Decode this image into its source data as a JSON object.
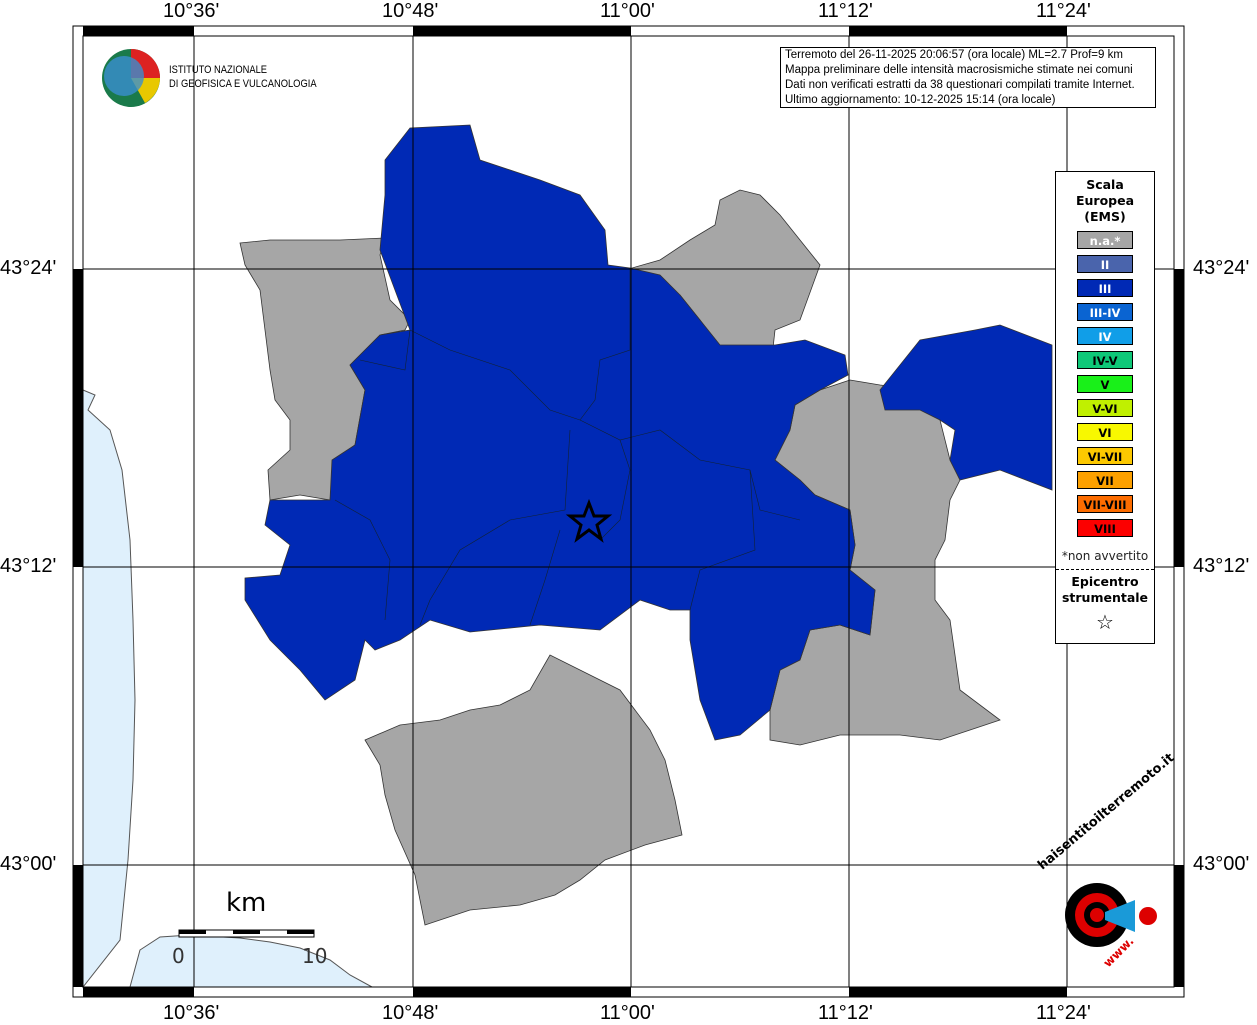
{
  "axes": {
    "lon_labels": [
      "10°36'",
      "10°48'",
      "11°00'",
      "11°12'",
      "11°24'"
    ],
    "lat_labels": [
      "43°24'",
      "43°12'",
      "43°00'"
    ]
  },
  "logo": {
    "line1": "ISTITUTO NAZIONALE",
    "line2": "DI GEOFISICA E VULCANOLOGIA"
  },
  "info": {
    "lines": [
      "Terremoto del 26-11-2025 20:06:57 (ora locale) ML=2.7 Prof=9 km",
      "Mappa preliminare delle intensità macrosismiche stimate nei comuni",
      "Dati non verificati estratti da 38 questionari compilati tramite Internet.",
      "Ultimo aggiornamento: 10-12-2025 15:14 (ora locale)"
    ]
  },
  "legend": {
    "title_lines": [
      "Scala",
      "Europea",
      "(EMS)"
    ],
    "items": [
      {
        "label": "n.a.*",
        "color": "#a6a6a6",
        "text": "#fff"
      },
      {
        "label": "II",
        "color": "#4a64ac",
        "text": "#fff"
      },
      {
        "label": "III",
        "color": "#0029b5",
        "text": "#fff"
      },
      {
        "label": "III-IV",
        "color": "#0a64d2",
        "text": "#fff"
      },
      {
        "label": "IV",
        "color": "#109ee8",
        "text": "#fff"
      },
      {
        "label": "IV-V",
        "color": "#0ec878",
        "text": "#000"
      },
      {
        "label": "V",
        "color": "#19f019",
        "text": "#000"
      },
      {
        "label": "V-VI",
        "color": "#c0f000",
        "text": "#000"
      },
      {
        "label": "VI",
        "color": "#f8f800",
        "text": "#000"
      },
      {
        "label": "VI-VII",
        "color": "#fcc800",
        "text": "#000"
      },
      {
        "label": "VII",
        "color": "#fca000",
        "text": "#000"
      },
      {
        "label": "VII-VIII",
        "color": "#fc6c00",
        "text": "#000"
      },
      {
        "label": "VIII",
        "color": "#fc0000",
        "text": "#000"
      }
    ],
    "note": "*non avvertito",
    "epicenter_lines": [
      "Epicentro",
      "strumentale"
    ],
    "epicenter_icon": "star-icon"
  },
  "scale": {
    "unit": "km",
    "min": "0",
    "max": "10"
  },
  "hst_logo": {
    "text": "haisentitoilterremoto.it",
    "www": "www."
  },
  "colors": {
    "water": "#dff0fc",
    "na": "#a6a6a6",
    "iii": "#0029b5"
  }
}
